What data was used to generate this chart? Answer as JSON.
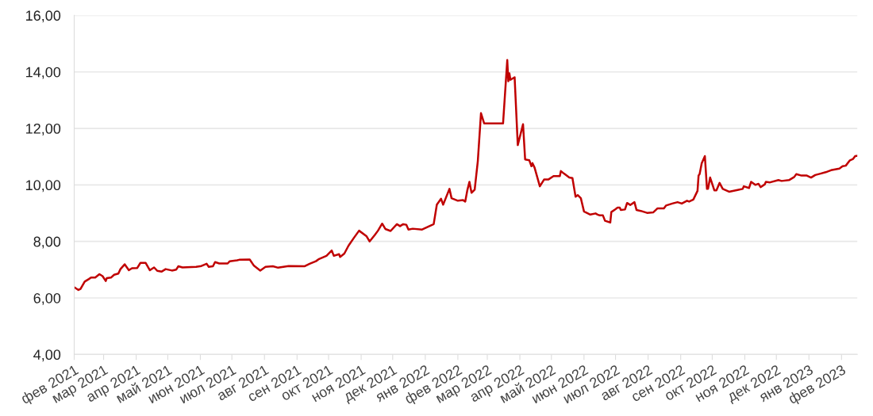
{
  "chart_data": {
    "type": "line",
    "marker": "none",
    "line_style": "solid",
    "grid": "y",
    "xlim": [
      "2021-02-01",
      "2023-02-16"
    ],
    "ylim": [
      4,
      16
    ],
    "yticks": [
      {
        "value": 4,
        "label": "4,00"
      },
      {
        "value": 6,
        "label": "6,00"
      },
      {
        "value": 8,
        "label": "8,00"
      },
      {
        "value": 10,
        "label": "10,00"
      },
      {
        "value": 12,
        "label": "12,00"
      },
      {
        "value": 14,
        "label": "14,00"
      },
      {
        "value": 16,
        "label": "16,00"
      }
    ],
    "xticks": [
      {
        "value": "2021-02-01",
        "label": "фев 2021"
      },
      {
        "value": "2021-03-01",
        "label": "мар 2021"
      },
      {
        "value": "2021-04-01",
        "label": "апр 2021"
      },
      {
        "value": "2021-05-01",
        "label": "май 2021"
      },
      {
        "value": "2021-06-01",
        "label": "июн 2021"
      },
      {
        "value": "2021-07-01",
        "label": "июл 2021"
      },
      {
        "value": "2021-08-01",
        "label": "авг 2021"
      },
      {
        "value": "2021-09-01",
        "label": "сен 2021"
      },
      {
        "value": "2021-10-01",
        "label": "окт 2021"
      },
      {
        "value": "2021-11-01",
        "label": "ноя 2021"
      },
      {
        "value": "2021-12-01",
        "label": "дек 2021"
      },
      {
        "value": "2022-01-01",
        "label": "янв 2022"
      },
      {
        "value": "2022-02-01",
        "label": "фев 2022"
      },
      {
        "value": "2022-03-01",
        "label": "мар 2022"
      },
      {
        "value": "2022-04-01",
        "label": "апр 2022"
      },
      {
        "value": "2022-05-01",
        "label": "май 2022"
      },
      {
        "value": "2022-06-01",
        "label": "июн 2022"
      },
      {
        "value": "2022-07-01",
        "label": "июл 2022"
      },
      {
        "value": "2022-08-01",
        "label": "авг 2022"
      },
      {
        "value": "2022-09-01",
        "label": "сен 2022"
      },
      {
        "value": "2022-10-01",
        "label": "окт 2022"
      },
      {
        "value": "2022-11-01",
        "label": "ноя 2022"
      },
      {
        "value": "2022-12-01",
        "label": "дек 2022"
      },
      {
        "value": "2023-01-01",
        "label": "янв 2023"
      },
      {
        "value": "2023-02-01",
        "label": "фев 2023"
      }
    ],
    "x": [
      "2021-02-01",
      "2021-02-05",
      "2021-02-07",
      "2021-02-11",
      "2021-02-15",
      "2021-02-17",
      "2021-02-21",
      "2021-02-25",
      "2021-02-28",
      "2021-03-03",
      "2021-03-04",
      "2021-03-08",
      "2021-03-11",
      "2021-03-15",
      "2021-03-17",
      "2021-03-21",
      "2021-03-25",
      "2021-03-28",
      "2021-04-02",
      "2021-04-05",
      "2021-04-10",
      "2021-04-14",
      "2021-04-18",
      "2021-04-21",
      "2021-04-25",
      "2021-04-29",
      "2021-05-05",
      "2021-05-09",
      "2021-05-11",
      "2021-05-15",
      "2021-05-28",
      "2021-06-02",
      "2021-06-07",
      "2021-06-09",
      "2021-06-13",
      "2021-06-15",
      "2021-06-19",
      "2021-06-27",
      "2021-06-29",
      "2021-07-06",
      "2021-07-08",
      "2021-07-18",
      "2021-07-22",
      "2021-07-28",
      "2021-08-02",
      "2021-08-09",
      "2021-08-14",
      "2021-08-24",
      "2021-09-08",
      "2021-09-13",
      "2021-09-19",
      "2021-09-22",
      "2021-09-29",
      "2021-10-04",
      "2021-10-06",
      "2021-10-11",
      "2021-10-12",
      "2021-10-16",
      "2021-10-20",
      "2021-10-25",
      "2021-10-30",
      "2021-11-06",
      "2021-11-09",
      "2021-11-14",
      "2021-11-17",
      "2021-11-21",
      "2021-11-24",
      "2021-11-29",
      "2021-12-05",
      "2021-12-08",
      "2021-12-11",
      "2021-12-14",
      "2021-12-16",
      "2021-12-20",
      "2021-12-29",
      "2022-01-09",
      "2022-01-12",
      "2022-01-16",
      "2022-01-18",
      "2022-01-24",
      "2022-01-26",
      "2022-02-01",
      "2022-02-06",
      "2022-02-08",
      "2022-02-10",
      "2022-02-12",
      "2022-02-14",
      "2022-02-17",
      "2022-02-20",
      "2022-02-23",
      "2022-02-26",
      "2022-03-16",
      "2022-03-20",
      "2022-03-21",
      "2022-03-22",
      "2022-03-23",
      "2022-03-27",
      "2022-03-30",
      "2022-04-04",
      "2022-04-06",
      "2022-04-10",
      "2022-04-12",
      "2022-04-13",
      "2022-04-15",
      "2022-04-20",
      "2022-04-24",
      "2022-04-28",
      "2022-05-03",
      "2022-05-09",
      "2022-05-10",
      "2022-05-13",
      "2022-05-18",
      "2022-05-21",
      "2022-05-24",
      "2022-05-26",
      "2022-05-29",
      "2022-06-01",
      "2022-06-07",
      "2022-06-12",
      "2022-06-14",
      "2022-06-16",
      "2022-06-19",
      "2022-06-21",
      "2022-06-26",
      "2022-06-27",
      "2022-07-01",
      "2022-07-03",
      "2022-07-05",
      "2022-07-06",
      "2022-07-10",
      "2022-07-12",
      "2022-07-15",
      "2022-07-19",
      "2022-07-21",
      "2022-07-25",
      "2022-07-31",
      "2022-08-06",
      "2022-08-10",
      "2022-08-16",
      "2022-08-18",
      "2022-08-24",
      "2022-08-29",
      "2022-09-02",
      "2022-09-07",
      "2022-09-09",
      "2022-09-13",
      "2022-09-17",
      "2022-09-18",
      "2022-09-19",
      "2022-09-21",
      "2022-09-24",
      "2022-09-26",
      "2022-09-27",
      "2022-09-29",
      "2022-10-03",
      "2022-10-05",
      "2022-10-08",
      "2022-10-11",
      "2022-10-17",
      "2022-10-26",
      "2022-10-30",
      "2022-10-31",
      "2022-11-05",
      "2022-11-07",
      "2022-11-11",
      "2022-11-14",
      "2022-11-16",
      "2022-11-20",
      "2022-11-21",
      "2022-11-25",
      "2022-12-03",
      "2022-12-06",
      "2022-12-13",
      "2022-12-18",
      "2022-12-20",
      "2022-12-25",
      "2022-12-30",
      "2023-01-03",
      "2023-01-07",
      "2023-01-12",
      "2023-01-17",
      "2023-01-22",
      "2023-01-26",
      "2023-01-30",
      "2023-02-02",
      "2023-02-05",
      "2023-02-09",
      "2023-02-12",
      "2023-02-14",
      "2023-02-16"
    ],
    "series": [
      {
        "color": "#c00000",
        "values": [
          6.38,
          6.28,
          6.32,
          6.58,
          6.67,
          6.72,
          6.72,
          6.84,
          6.77,
          6.6,
          6.7,
          6.72,
          6.82,
          6.86,
          7.02,
          7.19,
          6.98,
          7.05,
          7.06,
          7.24,
          7.24,
          6.98,
          7.08,
          6.96,
          6.93,
          7.02,
          6.97,
          7.0,
          7.12,
          7.08,
          7.1,
          7.13,
          7.21,
          7.1,
          7.12,
          7.27,
          7.22,
          7.22,
          7.3,
          7.33,
          7.35,
          7.36,
          7.14,
          6.97,
          7.1,
          7.12,
          7.07,
          7.13,
          7.12,
          7.21,
          7.3,
          7.38,
          7.49,
          7.68,
          7.49,
          7.55,
          7.45,
          7.57,
          7.85,
          8.12,
          8.38,
          8.19,
          8.0,
          8.23,
          8.38,
          8.63,
          8.44,
          8.37,
          8.61,
          8.54,
          8.61,
          8.59,
          8.42,
          8.45,
          8.42,
          8.61,
          9.3,
          9.51,
          9.3,
          9.86,
          9.53,
          9.44,
          9.46,
          9.41,
          9.81,
          10.11,
          9.72,
          9.83,
          10.85,
          12.54,
          12.18,
          12.18,
          14.42,
          13.67,
          13.95,
          13.72,
          13.81,
          11.41,
          12.15,
          10.9,
          10.87,
          10.66,
          10.77,
          10.61,
          9.95,
          10.19,
          10.19,
          10.31,
          10.31,
          10.49,
          10.4,
          10.26,
          10.24,
          9.58,
          9.64,
          9.53,
          9.06,
          8.95,
          8.99,
          8.95,
          8.92,
          8.92,
          8.73,
          8.67,
          9.04,
          9.14,
          9.2,
          9.2,
          9.11,
          9.13,
          9.36,
          9.29,
          9.39,
          9.11,
          9.08,
          9.01,
          9.03,
          9.17,
          9.17,
          9.27,
          9.34,
          9.39,
          9.34,
          9.44,
          9.41,
          9.48,
          9.79,
          10.33,
          10.38,
          10.77,
          11.02,
          9.86,
          9.86,
          10.26,
          9.81,
          9.81,
          10.07,
          9.86,
          9.76,
          9.83,
          9.86,
          9.95,
          9.89,
          10.11,
          10.0,
          10.04,
          9.92,
          10.02,
          10.11,
          10.09,
          10.17,
          10.14,
          10.17,
          10.28,
          10.38,
          10.33,
          10.33,
          10.26,
          10.35,
          10.4,
          10.45,
          10.52,
          10.55,
          10.58,
          10.66,
          10.68,
          10.87,
          10.92,
          11.02,
          11.03
        ]
      }
    ]
  }
}
